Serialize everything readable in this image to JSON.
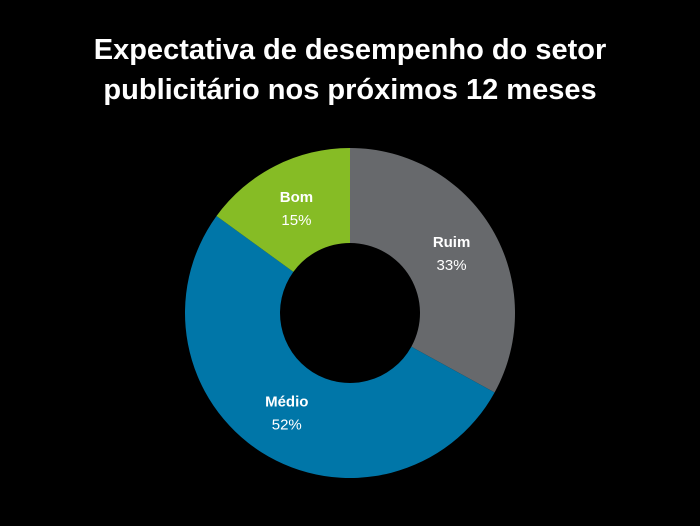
{
  "chart_data": {
    "type": "pie",
    "variant": "donut",
    "title_lines": [
      "Expectativa de desempenho do setor",
      "publicitário nos próximos 12 meses"
    ],
    "title": "Expectativa de desempenho do setor publicitário nos próximos 12 meses",
    "categories": [
      "Ruim",
      "Médio",
      "Bom"
    ],
    "values": [
      33,
      52,
      15
    ],
    "labels": [
      "33%",
      "52%",
      "15%"
    ],
    "colors": [
      "#67696c",
      "#0076a8",
      "#86bc25"
    ],
    "start": "top",
    "direction": "clockwise",
    "legend": "none"
  }
}
